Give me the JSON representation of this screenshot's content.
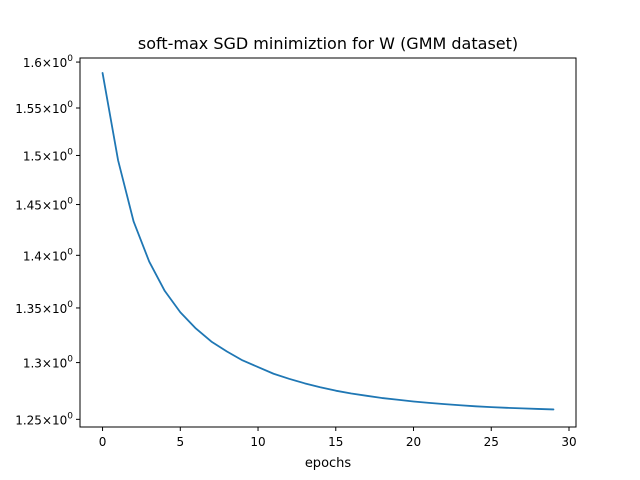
{
  "chart_data": {
    "type": "line",
    "title": "soft-max SGD minimiztion for W (GMM dataset)",
    "xlabel": "epochs",
    "ylabel": "",
    "yscale": "log",
    "xlim": [
      -1.45,
      30.45
    ],
    "ylim": [
      1.2434,
      1.6045
    ],
    "grid": false,
    "x_ticks": [
      0,
      5,
      10,
      15,
      20,
      25,
      30
    ],
    "x_tick_labels": [
      "0",
      "5",
      "10",
      "15",
      "20",
      "25",
      "30"
    ],
    "y_ticks": [
      1.25,
      1.3,
      1.35,
      1.4,
      1.45,
      1.5,
      1.55,
      1.6
    ],
    "y_tick_mantissas": [
      "1.25",
      "1.3",
      "1.35",
      "1.4",
      "1.45",
      "1.5",
      "1.55",
      "1.6"
    ],
    "y_tick_base": "10",
    "y_tick_exponent": "0",
    "series": [
      {
        "color": "#1f77b4",
        "x": [
          0,
          1,
          2,
          3,
          4,
          5,
          6,
          7,
          8,
          9,
          10,
          11,
          12,
          13,
          14,
          15,
          16,
          17,
          18,
          19,
          20,
          21,
          22,
          23,
          24,
          25,
          26,
          27,
          28,
          29
        ],
        "values": [
          1.588,
          1.495,
          1.433,
          1.394,
          1.366,
          1.346,
          1.331,
          1.319,
          1.31,
          1.302,
          1.296,
          1.29,
          1.2855,
          1.2815,
          1.278,
          1.275,
          1.2725,
          1.2705,
          1.2685,
          1.267,
          1.2655,
          1.2643,
          1.2632,
          1.2622,
          1.2613,
          1.2606,
          1.26,
          1.2595,
          1.259,
          1.2586
        ]
      }
    ]
  }
}
